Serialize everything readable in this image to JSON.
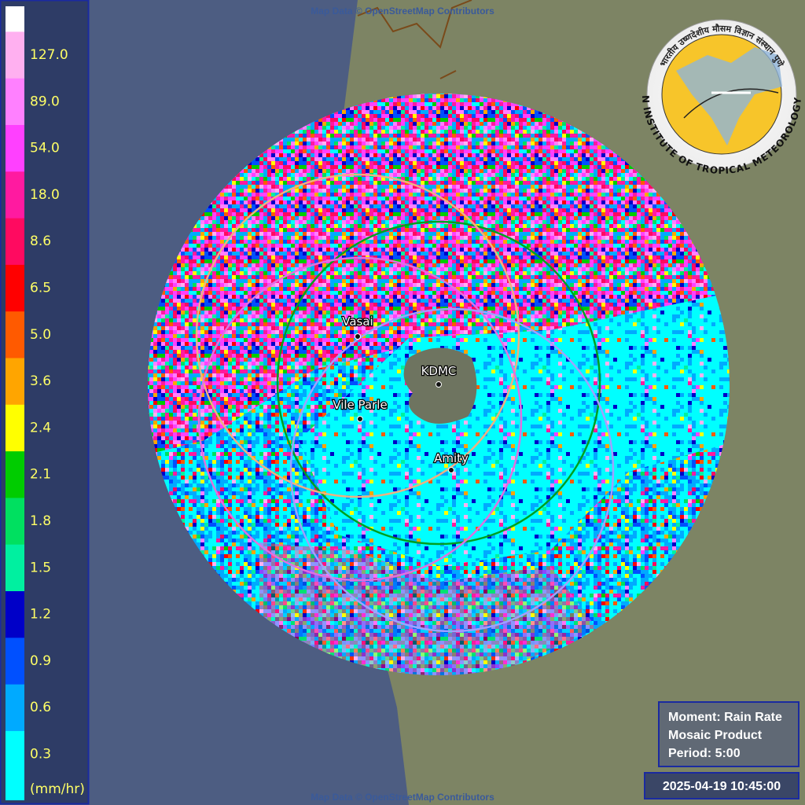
{
  "attribution_top": "Map Data © OpenStreetMap Contributors",
  "attribution_bottom": "Map Data © OpenStreetMap Contributors",
  "legend": {
    "items": [
      {
        "label": "127.0",
        "color": "#ffb0f0"
      },
      {
        "label": "89.0",
        "color": "#ff80ff"
      },
      {
        "label": "54.0",
        "color": "#ff40ff"
      },
      {
        "label": "18.0",
        "color": "#ff1aa0"
      },
      {
        "label": "8.6",
        "color": "#ff0a60"
      },
      {
        "label": "6.5",
        "color": "#ff0000"
      },
      {
        "label": "5.0",
        "color": "#ff5a00"
      },
      {
        "label": "3.6",
        "color": "#ffa500"
      },
      {
        "label": "2.4",
        "color": "#ffff00"
      },
      {
        "label": "2.1",
        "color": "#00cc00"
      },
      {
        "label": "1.8",
        "color": "#00e060"
      },
      {
        "label": "1.5",
        "color": "#00f0a0"
      },
      {
        "label": "1.2",
        "color": "#0000c8"
      },
      {
        "label": "0.9",
        "color": "#0050ff"
      },
      {
        "label": "0.6",
        "color": "#00aaff"
      },
      {
        "label": "0.3",
        "color": "#00ffff"
      }
    ],
    "unit": "(mm/hr)"
  },
  "places": [
    {
      "label": "Vasai"
    },
    {
      "label": "KDMC"
    },
    {
      "label": "Vile Parle"
    },
    {
      "label": "Amity"
    }
  ],
  "info": {
    "lines": [
      "Moment: Rain Rate",
      "Mosaic Product",
      "Period: 5:00"
    ]
  },
  "timestamp": "2025-04-19 10:45:00",
  "logo": {
    "english": "INDIAN INSTITUTE OF TROPICAL METEOROLOGY PUNE",
    "hindi": "भारतीय उष्णदेशीय मौसम विज्ञान संस्थान पुणे"
  }
}
